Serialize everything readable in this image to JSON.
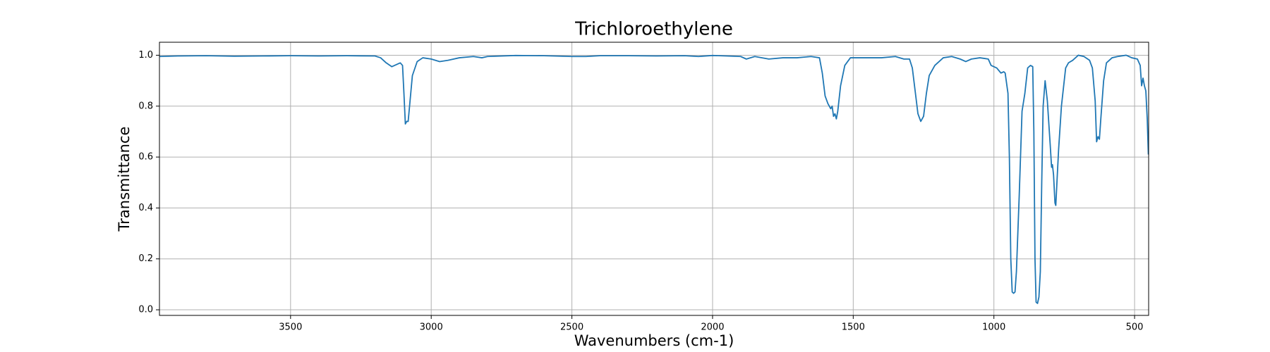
{
  "chart_data": {
    "type": "line",
    "title": "Trichloroethylene",
    "xlabel": "Wavenumbers (cm-1)",
    "ylabel": "Transmittance",
    "xlim": [
      3966,
      450
    ],
    "ylim": [
      -0.022,
      1.051
    ],
    "xticks": [
      3500,
      3000,
      2500,
      2000,
      1500,
      1000,
      500
    ],
    "yticks": [
      {
        "value": 0.0,
        "label": "0.0"
      },
      0.2,
      0.4,
      0.6,
      0.8,
      {
        "value": 1.0,
        "label": "1.0"
      }
    ],
    "grid": true,
    "series": [
      {
        "name": "Trichloroethylene",
        "color": "#1f77b4",
        "x": [
          3966,
          3900,
          3800,
          3700,
          3600,
          3500,
          3400,
          3300,
          3200,
          3180,
          3160,
          3140,
          3120,
          3110,
          3102,
          3097,
          3092,
          3087,
          3082,
          3077,
          3067,
          3050,
          3030,
          3000,
          2970,
          2940,
          2900,
          2850,
          2820,
          2800,
          2700,
          2600,
          2500,
          2450,
          2400,
          2300,
          2200,
          2100,
          2050,
          2000,
          1950,
          1900,
          1880,
          1850,
          1800,
          1750,
          1700,
          1650,
          1620,
          1610,
          1600,
          1590,
          1580,
          1575,
          1570,
          1565,
          1560,
          1555,
          1545,
          1530,
          1510,
          1450,
          1400,
          1350,
          1320,
          1300,
          1290,
          1280,
          1270,
          1260,
          1250,
          1240,
          1230,
          1210,
          1180,
          1150,
          1120,
          1100,
          1080,
          1050,
          1020,
          1010,
          990,
          975,
          965,
          960,
          950,
          945,
          940,
          935,
          930,
          925,
          920,
          910,
          900,
          890,
          880,
          870,
          862,
          858,
          854,
          850,
          845,
          840,
          835,
          830,
          825,
          818,
          810,
          800,
          795,
          792,
          788,
          783,
          780,
          776,
          770,
          760,
          745,
          735,
          720,
          700,
          680,
          660,
          650,
          640,
          635,
          630,
          625,
          620,
          610,
          600,
          580,
          560,
          530,
          510,
          490,
          480,
          475,
          470,
          465,
          460,
          455,
          451
        ],
        "values": [
          0.995,
          0.997,
          0.998,
          0.996,
          0.997,
          0.998,
          0.997,
          0.998,
          0.997,
          0.99,
          0.97,
          0.955,
          0.965,
          0.97,
          0.96,
          0.85,
          0.73,
          0.74,
          0.74,
          0.8,
          0.92,
          0.975,
          0.99,
          0.985,
          0.975,
          0.98,
          0.99,
          0.995,
          0.99,
          0.995,
          0.999,
          0.998,
          0.995,
          0.995,
          0.998,
          0.998,
          0.997,
          0.998,
          0.995,
          0.999,
          0.997,
          0.995,
          0.985,
          0.995,
          0.985,
          0.99,
          0.99,
          0.995,
          0.99,
          0.93,
          0.84,
          0.81,
          0.79,
          0.8,
          0.76,
          0.77,
          0.75,
          0.78,
          0.88,
          0.96,
          0.99,
          0.99,
          0.99,
          0.995,
          0.985,
          0.985,
          0.95,
          0.86,
          0.77,
          0.74,
          0.76,
          0.85,
          0.92,
          0.96,
          0.99,
          0.995,
          0.985,
          0.975,
          0.985,
          0.99,
          0.985,
          0.96,
          0.95,
          0.93,
          0.935,
          0.93,
          0.85,
          0.6,
          0.2,
          0.07,
          0.065,
          0.07,
          0.15,
          0.45,
          0.78,
          0.85,
          0.95,
          0.96,
          0.955,
          0.7,
          0.2,
          0.03,
          0.025,
          0.05,
          0.15,
          0.5,
          0.8,
          0.9,
          0.82,
          0.65,
          0.56,
          0.57,
          0.53,
          0.42,
          0.41,
          0.5,
          0.63,
          0.8,
          0.95,
          0.97,
          0.98,
          1.0,
          0.995,
          0.98,
          0.95,
          0.82,
          0.66,
          0.68,
          0.67,
          0.75,
          0.9,
          0.97,
          0.99,
          0.995,
          1.0,
          0.99,
          0.985,
          0.96,
          0.88,
          0.91,
          0.88,
          0.86,
          0.75,
          0.61
        ]
      }
    ]
  }
}
